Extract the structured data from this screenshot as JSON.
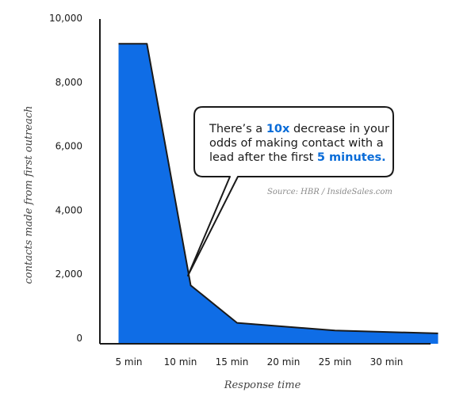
{
  "chart_data": {
    "type": "area",
    "ylabel": "contacts made from first outreach",
    "xlabel": "Response time",
    "ylim": [
      0,
      10000
    ],
    "yticks": [
      0,
      2000,
      4000,
      6000,
      8000,
      10000
    ],
    "ytick_labels": [
      "0",
      "2,000",
      "4,000",
      "6,000",
      "8,000",
      "10,000"
    ],
    "categories": [
      "5 min",
      "10 min",
      "15 min",
      "20 min",
      "25 min",
      "30 min"
    ],
    "grid": false,
    "fill_color": "#0f6de6",
    "line_color": "#1a1a1a",
    "points": [
      {
        "x": 0.3,
        "y": 9200
      },
      {
        "x": 0.85,
        "y": 9200
      },
      {
        "x": 1.7,
        "y": 1650
      },
      {
        "x": 2.6,
        "y": 480
      },
      {
        "x": 4.5,
        "y": 240
      },
      {
        "x": 6.5,
        "y": 150
      }
    ],
    "annotation": {
      "parts": [
        {
          "text": "There’s a ",
          "highlight": false
        },
        {
          "text": "10x",
          "highlight": true
        },
        {
          "text": " decrease in your",
          "highlight": false
        },
        {
          "text": "odds of making contact with a",
          "highlight": false
        },
        {
          "text": "lead after the first ",
          "highlight": false
        },
        {
          "text": "5 minutes.",
          "highlight": true
        }
      ],
      "highlight_color": "#0a6cd8"
    },
    "source": "Source: HBR / InsideSales.com"
  }
}
